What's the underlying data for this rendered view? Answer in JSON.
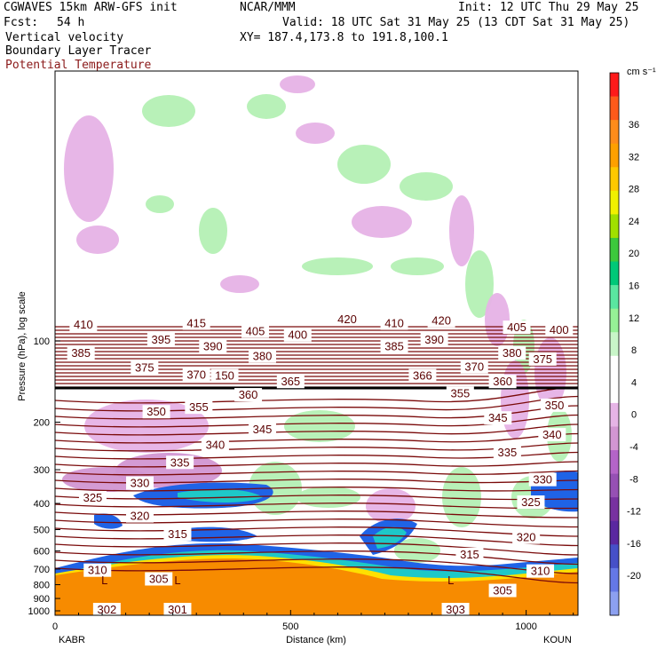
{
  "header": {
    "line1_left": "CGWAVES 15km ARW-GFS init",
    "line1_center": "NCAR/MMM",
    "line1_right": "Init: 12 UTC Thu 29 May 25",
    "fcst_label": "Fcst:",
    "fcst_value": "54 h",
    "valid": "Valid: 18 UTC Sat 31 May 25 (13 CDT Sat 31 May 25)",
    "field1": "Vertical velocity",
    "xy": "XY= 187.4,173.8 to 191.8,100.1",
    "field2": "Boundary Layer Tracer",
    "field3": "Potential Temperature"
  },
  "colors": {
    "theta": "#7a0a0a",
    "negative_light": "#e6b2e6",
    "positive_light": "#b4f0b4",
    "terrain": "#f78b00",
    "tracer_blue": "#1f63e6"
  },
  "chart_data": {
    "type": "cross-section",
    "xlabel": "Distance (km)",
    "ylabel": "Pressure (hPa), log scale",
    "xlim": [
      0,
      1110
    ],
    "x_ticks": [
      0,
      500,
      1000
    ],
    "y_ticks": [
      100,
      200,
      300,
      400,
      500,
      600,
      700,
      800,
      900,
      1000
    ],
    "y_scale": "log",
    "left_station": "KABR",
    "right_station": "KOUN",
    "colorbar": {
      "unit": "cm s⁻¹",
      "ticks": [
        36,
        32,
        28,
        24,
        20,
        16,
        12,
        8,
        4,
        0,
        -4,
        -8,
        -12,
        -16,
        -20
      ],
      "colors": [
        "#ff1a1a",
        "#ff5a1a",
        "#ff8c1a",
        "#ffa000",
        "#ffc800",
        "#f0f000",
        "#a0e000",
        "#3cc83c",
        "#00c878",
        "#5ae6a0",
        "#96f096",
        "#c8f5c8",
        "#ffffff",
        "#ffffff",
        "#e6b4e6",
        "#d296d2",
        "#b464c8",
        "#9650b4",
        "#7832a0",
        "#5a28a0",
        "#4650c8",
        "#6478e6",
        "#8ca0f0"
      ]
    },
    "theta_labels": [
      {
        "value": "410",
        "x": 60,
        "p": 88
      },
      {
        "value": "415",
        "x": 300,
        "p": 87
      },
      {
        "value": "420",
        "x": 620,
        "p": 84
      },
      {
        "value": "410",
        "x": 720,
        "p": 87
      },
      {
        "value": "420",
        "x": 820,
        "p": 85
      },
      {
        "value": "405",
        "x": 425,
        "p": 93
      },
      {
        "value": "400",
        "x": 515,
        "p": 96
      },
      {
        "value": "405",
        "x": 980,
        "p": 90
      },
      {
        "value": "400",
        "x": 1070,
        "p": 92
      },
      {
        "value": "395",
        "x": 225,
        "p": 100
      },
      {
        "value": "390",
        "x": 335,
        "p": 106
      },
      {
        "value": "390",
        "x": 805,
        "p": 100
      },
      {
        "value": "385",
        "x": 55,
        "p": 112
      },
      {
        "value": "385",
        "x": 720,
        "p": 106
      },
      {
        "value": "380",
        "x": 440,
        "p": 115
      },
      {
        "value": "380",
        "x": 970,
        "p": 112
      },
      {
        "value": "375",
        "x": 190,
        "p": 127
      },
      {
        "value": "375",
        "x": 1035,
        "p": 118
      },
      {
        "value": "370",
        "x": 890,
        "p": 126
      },
      {
        "value": "370",
        "x": 300,
        "p": 135
      },
      {
        "value": "150",
        "x": 360,
        "p": 136
      },
      {
        "value": "365",
        "x": 500,
        "p": 143
      },
      {
        "value": "366",
        "x": 780,
        "p": 136
      },
      {
        "value": "360",
        "x": 950,
        "p": 143
      },
      {
        "value": "360",
        "x": 410,
        "p": 160
      },
      {
        "value": "355",
        "x": 305,
        "p": 178
      },
      {
        "value": "355",
        "x": 860,
        "p": 158
      },
      {
        "value": "350",
        "x": 215,
        "p": 185
      },
      {
        "value": "350",
        "x": 1060,
        "p": 175
      },
      {
        "value": "345",
        "x": 440,
        "p": 215
      },
      {
        "value": "345",
        "x": 940,
        "p": 195
      },
      {
        "value": "340",
        "x": 340,
        "p": 245
      },
      {
        "value": "340",
        "x": 1055,
        "p": 225
      },
      {
        "value": "335",
        "x": 265,
        "p": 285
      },
      {
        "value": "335",
        "x": 960,
        "p": 262
      },
      {
        "value": "330",
        "x": 180,
        "p": 340
      },
      {
        "value": "330",
        "x": 1035,
        "p": 330
      },
      {
        "value": "325",
        "x": 80,
        "p": 385
      },
      {
        "value": "325",
        "x": 1010,
        "p": 400
      },
      {
        "value": "320",
        "x": 180,
        "p": 450
      },
      {
        "value": "320",
        "x": 1000,
        "p": 540
      },
      {
        "value": "315",
        "x": 260,
        "p": 525
      },
      {
        "value": "315",
        "x": 880,
        "p": 625
      },
      {
        "value": "310",
        "x": 90,
        "p": 715
      },
      {
        "value": "310",
        "x": 1030,
        "p": 720
      },
      {
        "value": "305",
        "x": 220,
        "p": 770
      },
      {
        "value": "305",
        "x": 950,
        "p": 850
      },
      {
        "value": "302",
        "x": 110,
        "p": 1000
      },
      {
        "value": "301",
        "x": 260,
        "p": 1000
      },
      {
        "value": "303",
        "x": 850,
        "p": 1000
      }
    ],
    "low_markers": [
      {
        "value": "L",
        "x": 105,
        "p": 900
      },
      {
        "value": "L",
        "x": 260,
        "p": 900
      },
      {
        "value": "L",
        "x": 840,
        "p": 900
      }
    ]
  }
}
